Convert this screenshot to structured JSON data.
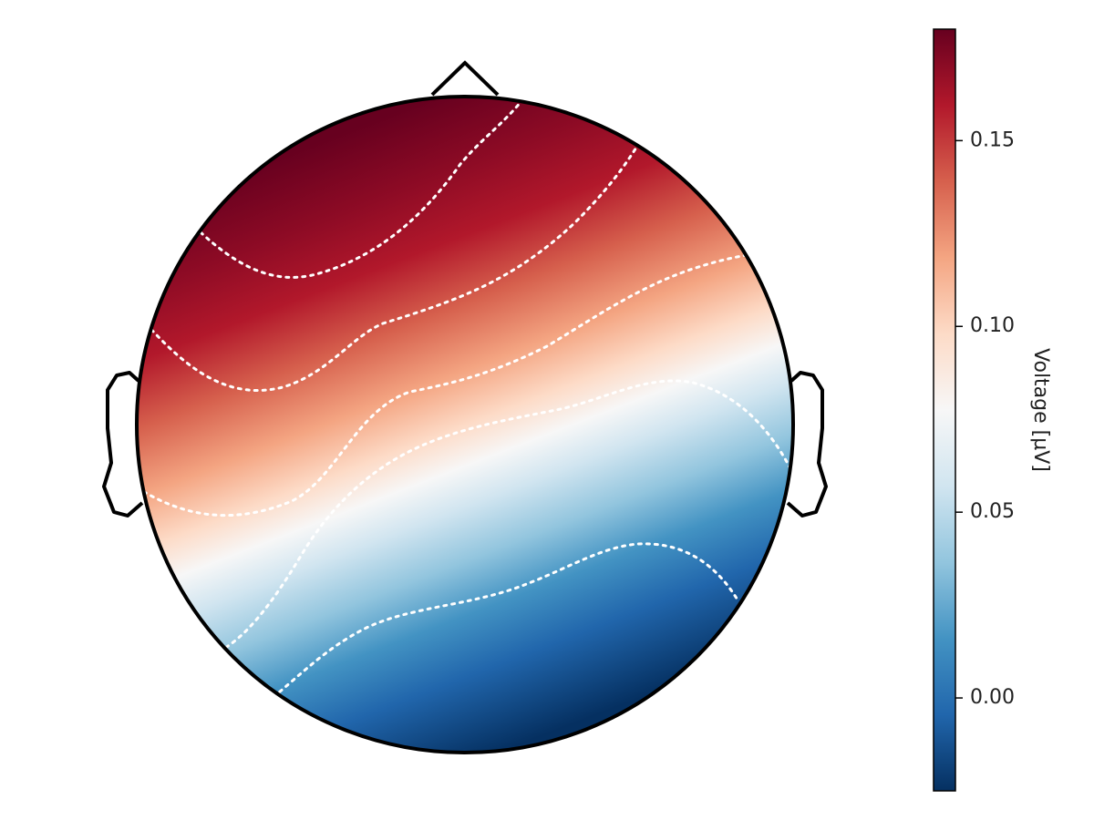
{
  "chart_data": {
    "type": "heatmap",
    "title": "",
    "plot_kind": "topographic scalp map",
    "colormap": "RdBu_r",
    "colorbar": {
      "label": "Voltage [µV]",
      "vmin": -0.025,
      "vmax": 0.18,
      "ticks": [
        0.0,
        0.05,
        0.1,
        0.15
      ],
      "tick_labels": [
        "0.00",
        "0.05",
        "0.10",
        "0.15"
      ],
      "placement": "right"
    },
    "gradient_direction": "top-left high to bottom-right low",
    "contour_levels": [
      0.16,
      0.12,
      0.08,
      0.04,
      0.0
    ],
    "contour_style": "white dotted",
    "head_outline": {
      "nose": true,
      "ears": true,
      "color": "#000000"
    },
    "grid": false,
    "legend": "none"
  }
}
